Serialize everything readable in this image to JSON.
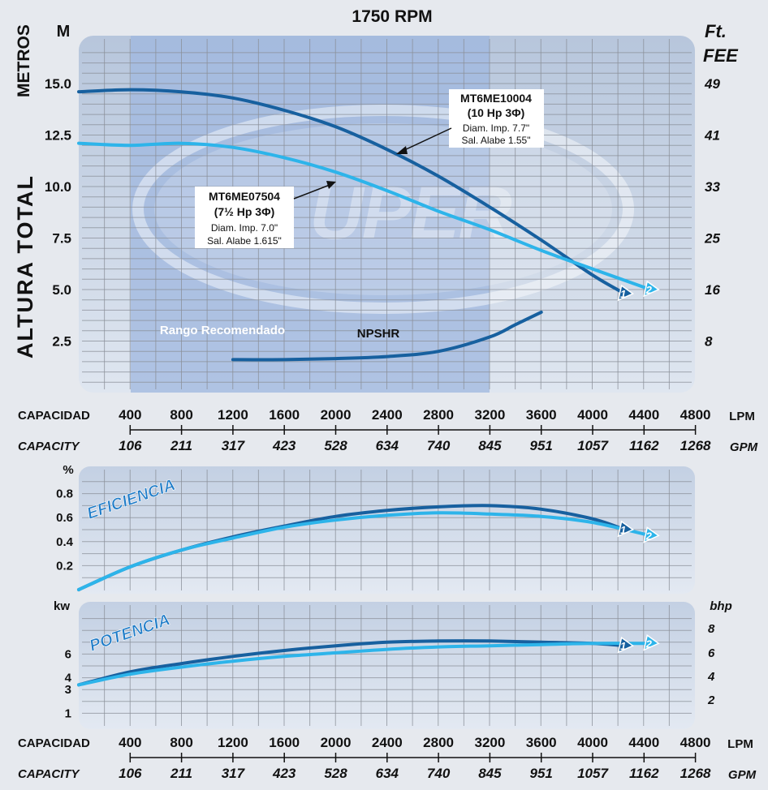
{
  "title": "1750 RPM",
  "head_chart": {
    "left_unit": "M",
    "left_axis_label_top": "METROS",
    "left_axis_label_main": "ALTURA TOTAL",
    "right_unit_1": "Ft.",
    "right_unit_2": "FEE",
    "y_ticks_m": [
      "15.0",
      "12.5",
      "10.0",
      "7.5",
      "5.0",
      "2.5"
    ],
    "y_ticks_ft": [
      "49",
      "41",
      "33",
      "25",
      "16",
      "8"
    ],
    "recommended_range_label": "Rango Recomendado",
    "npshr_label": "NPSHR",
    "watermark": "UPER",
    "model_1": {
      "name": "MT6ME10004",
      "power": "(10 Hp 3Φ)",
      "diam": "Diam. Imp. 7.7\"",
      "alabe": "Sal. Alabe 1.55\"",
      "marker": "1"
    },
    "model_2": {
      "name": "MT6ME07504",
      "power": "(7½ Hp 3Φ)",
      "diam": "Diam. Imp. 7.0\"",
      "alabe": "Sal. Alabe 1.615\"",
      "marker": "2"
    }
  },
  "capacity_axis": {
    "lpm_label": "CAPACIDAD",
    "gpm_label": "CAPACITY",
    "lpm_unit": "LPM",
    "gpm_unit": "GPM",
    "lpm_ticks": [
      "400",
      "800",
      "1200",
      "1600",
      "2000",
      "2400",
      "2800",
      "3200",
      "3600",
      "4000",
      "4400",
      "4800"
    ],
    "gpm_ticks": [
      "106",
      "211",
      "317",
      "423",
      "528",
      "634",
      "740",
      "845",
      "951",
      "1057",
      "1162",
      "1268"
    ]
  },
  "eff_chart": {
    "title": "EFICIENCIA",
    "unit": "%",
    "y_ticks": [
      "0.8",
      "0.6",
      "0.4",
      "0.2"
    ]
  },
  "power_chart": {
    "title": "POTENCIA",
    "left_unit": "kw",
    "right_unit": "bhp",
    "y_ticks_kw": [
      "6",
      "4",
      "3",
      "1"
    ],
    "y_ticks_bhp": [
      "8",
      "6",
      "4",
      "2"
    ]
  },
  "colors": {
    "model_1": "#17609f",
    "model_2": "#2db4ea",
    "panel": "#c9d6e8",
    "recommended": "#a7bde0",
    "grid": "#8a8f98"
  },
  "chart_data": [
    {
      "type": "line",
      "title": "1750 RPM",
      "xlabel": "CAPACIDAD (LPM)",
      "ylabel": "ALTURA TOTAL (M)",
      "xlim": [
        0,
        4800
      ],
      "ylim": [
        0,
        17
      ],
      "series": [
        {
          "name": "MT6ME10004",
          "x": [
            0,
            400,
            800,
            1200,
            1600,
            2000,
            2400,
            2800,
            3200,
            3600,
            4000,
            4250
          ],
          "y": [
            14.6,
            14.7,
            14.6,
            14.3,
            13.7,
            12.9,
            11.8,
            10.5,
            9.0,
            7.4,
            5.7,
            4.8
          ]
        },
        {
          "name": "MT6ME07504",
          "x": [
            0,
            400,
            800,
            1200,
            1600,
            2000,
            2400,
            2800,
            3200,
            3600,
            4000,
            4450
          ],
          "y": [
            12.1,
            12.0,
            12.1,
            11.9,
            11.4,
            10.7,
            9.8,
            8.8,
            7.9,
            6.9,
            6.0,
            5.0
          ]
        },
        {
          "name": "NPSHR",
          "x": [
            1200,
            1600,
            2000,
            2400,
            2800,
            3200,
            3400,
            3600
          ],
          "y": [
            1.6,
            1.6,
            1.65,
            1.75,
            2.0,
            2.7,
            3.3,
            3.9
          ]
        }
      ]
    },
    {
      "type": "line",
      "title": "EFICIENCIA",
      "ylabel": "%",
      "xlim": [
        0,
        4800
      ],
      "ylim": [
        0,
        1.0
      ],
      "series": [
        {
          "name": "MT6ME10004",
          "x": [
            0,
            400,
            800,
            1200,
            1600,
            2000,
            2400,
            2800,
            3200,
            3600,
            4000,
            4250
          ],
          "y": [
            0.0,
            0.19,
            0.33,
            0.44,
            0.53,
            0.61,
            0.66,
            0.69,
            0.7,
            0.67,
            0.59,
            0.5
          ]
        },
        {
          "name": "MT6ME07504",
          "x": [
            0,
            400,
            800,
            1200,
            1600,
            2000,
            2400,
            2800,
            3200,
            3600,
            4000,
            4450
          ],
          "y": [
            0.0,
            0.19,
            0.33,
            0.43,
            0.52,
            0.58,
            0.62,
            0.64,
            0.63,
            0.61,
            0.56,
            0.45
          ]
        }
      ]
    },
    {
      "type": "line",
      "title": "POTENCIA",
      "ylabel": "kw",
      "xlim": [
        0,
        4800
      ],
      "ylim": [
        0,
        8
      ],
      "series": [
        {
          "name": "MT6ME10004",
          "x": [
            0,
            400,
            800,
            1200,
            1600,
            2000,
            2400,
            2800,
            3200,
            3600,
            4000,
            4250
          ],
          "y": [
            3.4,
            4.5,
            5.2,
            5.8,
            6.3,
            6.7,
            7.0,
            7.1,
            7.1,
            7.0,
            6.9,
            6.7
          ]
        },
        {
          "name": "MT6ME07504",
          "x": [
            0,
            400,
            800,
            1200,
            1600,
            2000,
            2400,
            2800,
            3200,
            3600,
            4000,
            4450
          ],
          "y": [
            3.4,
            4.3,
            4.9,
            5.4,
            5.8,
            6.1,
            6.4,
            6.6,
            6.7,
            6.8,
            6.9,
            6.9
          ]
        }
      ]
    }
  ]
}
